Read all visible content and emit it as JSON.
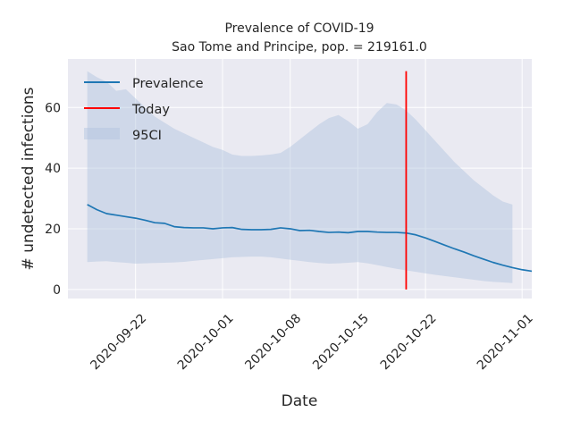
{
  "chart_data": {
    "type": "line",
    "title": "Prevalence of COVID-19",
    "subtitle": "Sao Tome and Principe, pop. = 219161.0",
    "xlabel": "Date",
    "ylabel": "# undetected infections",
    "x_type": "date",
    "xlim": [
      "2020-09-15",
      "2020-11-02"
    ],
    "ylim": [
      -3,
      76
    ],
    "x_ticks": [
      "2020-09-22",
      "2020-10-01",
      "2020-10-08",
      "2020-10-15",
      "2020-10-22",
      "2020-11-01"
    ],
    "y_ticks": [
      0,
      20,
      40,
      60
    ],
    "grid": true,
    "legend_position": "top-left",
    "series": [
      {
        "name": "Prevalence",
        "kind": "line",
        "color": "#1f77b4",
        "points": [
          [
            "2020-09-17",
            28.0
          ],
          [
            "2020-09-18",
            26.3
          ],
          [
            "2020-09-19",
            25.0
          ],
          [
            "2020-09-20",
            24.5
          ],
          [
            "2020-09-21",
            24.0
          ],
          [
            "2020-09-22",
            23.5
          ],
          [
            "2020-09-23",
            22.8
          ],
          [
            "2020-09-24",
            22.0
          ],
          [
            "2020-09-25",
            21.8
          ],
          [
            "2020-09-26",
            20.7
          ],
          [
            "2020-09-27",
            20.4
          ],
          [
            "2020-09-28",
            20.3
          ],
          [
            "2020-09-29",
            20.3
          ],
          [
            "2020-09-30",
            20.0
          ],
          [
            "2020-10-01",
            20.3
          ],
          [
            "2020-10-02",
            20.4
          ],
          [
            "2020-10-03",
            19.8
          ],
          [
            "2020-10-04",
            19.7
          ],
          [
            "2020-10-05",
            19.7
          ],
          [
            "2020-10-06",
            19.8
          ],
          [
            "2020-10-07",
            20.3
          ],
          [
            "2020-10-08",
            20.0
          ],
          [
            "2020-10-09",
            19.4
          ],
          [
            "2020-10-10",
            19.5
          ],
          [
            "2020-10-11",
            19.1
          ],
          [
            "2020-10-12",
            18.8
          ],
          [
            "2020-10-13",
            18.9
          ],
          [
            "2020-10-14",
            18.7
          ],
          [
            "2020-10-15",
            19.1
          ],
          [
            "2020-10-16",
            19.1
          ],
          [
            "2020-10-17",
            18.9
          ],
          [
            "2020-10-18",
            18.8
          ],
          [
            "2020-10-19",
            18.8
          ],
          [
            "2020-10-20",
            18.6
          ],
          [
            "2020-10-21",
            18.0
          ],
          [
            "2020-10-22",
            17.0
          ],
          [
            "2020-10-23",
            15.8
          ],
          [
            "2020-10-24",
            14.6
          ],
          [
            "2020-10-25",
            13.4
          ],
          [
            "2020-10-26",
            12.3
          ],
          [
            "2020-10-27",
            11.1
          ],
          [
            "2020-10-28",
            10.0
          ],
          [
            "2020-10-29",
            8.9
          ],
          [
            "2020-10-30",
            8.0
          ],
          [
            "2020-10-31",
            7.2
          ],
          [
            "2020-11-01",
            6.5
          ],
          [
            "2020-11-02",
            6.0
          ]
        ]
      },
      {
        "name": "Today",
        "kind": "vline",
        "color": "#ff0000",
        "x": "2020-10-20",
        "y_range": [
          0,
          72
        ]
      },
      {
        "name": "95CI",
        "kind": "band",
        "color": "#b0c4de",
        "points": [
          [
            "2020-09-17",
            9.0,
            72.0
          ],
          [
            "2020-09-18",
            9.2,
            70.0
          ],
          [
            "2020-09-19",
            9.3,
            68.5
          ],
          [
            "2020-09-20",
            9.0,
            65.5
          ],
          [
            "2020-09-21",
            8.8,
            66.0
          ],
          [
            "2020-09-22",
            8.5,
            63.0
          ],
          [
            "2020-09-23",
            8.6,
            60.0
          ],
          [
            "2020-09-24",
            8.7,
            57.0
          ],
          [
            "2020-09-25",
            8.8,
            55.0
          ],
          [
            "2020-09-26",
            8.9,
            53.0
          ],
          [
            "2020-09-27",
            9.1,
            51.5
          ],
          [
            "2020-09-28",
            9.4,
            50.0
          ],
          [
            "2020-09-29",
            9.7,
            48.5
          ],
          [
            "2020-09-30",
            10.0,
            47.0
          ],
          [
            "2020-10-01",
            10.3,
            46.0
          ],
          [
            "2020-10-02",
            10.6,
            44.5
          ],
          [
            "2020-10-03",
            10.7,
            44.0
          ],
          [
            "2020-10-04",
            10.8,
            44.0
          ],
          [
            "2020-10-05",
            10.8,
            44.2
          ],
          [
            "2020-10-06",
            10.6,
            44.5
          ],
          [
            "2020-10-07",
            10.2,
            45.0
          ],
          [
            "2020-10-08",
            9.8,
            47.0
          ],
          [
            "2020-10-09",
            9.4,
            49.5
          ],
          [
            "2020-10-10",
            9.0,
            52.0
          ],
          [
            "2020-10-11",
            8.7,
            54.5
          ],
          [
            "2020-10-12",
            8.5,
            56.5
          ],
          [
            "2020-10-13",
            8.6,
            57.5
          ],
          [
            "2020-10-14",
            8.8,
            55.5
          ],
          [
            "2020-10-15",
            9.0,
            53.0
          ],
          [
            "2020-10-16",
            8.6,
            54.5
          ],
          [
            "2020-10-17",
            8.0,
            58.5
          ],
          [
            "2020-10-18",
            7.4,
            61.5
          ],
          [
            "2020-10-19",
            6.8,
            61.0
          ],
          [
            "2020-10-20",
            6.3,
            59.0
          ],
          [
            "2020-10-21",
            5.8,
            56.0
          ],
          [
            "2020-10-22",
            5.3,
            52.5
          ],
          [
            "2020-10-23",
            4.8,
            49.0
          ],
          [
            "2020-10-24",
            4.4,
            45.5
          ],
          [
            "2020-10-25",
            4.0,
            42.0
          ],
          [
            "2020-10-26",
            3.6,
            39.0
          ],
          [
            "2020-10-27",
            3.2,
            36.0
          ],
          [
            "2020-10-28",
            2.8,
            33.5
          ],
          [
            "2020-10-29",
            2.5,
            31.0
          ],
          [
            "2020-10-30",
            2.3,
            29.0
          ],
          [
            "2020-10-31",
            2.1,
            28.0
          ]
        ]
      }
    ]
  }
}
